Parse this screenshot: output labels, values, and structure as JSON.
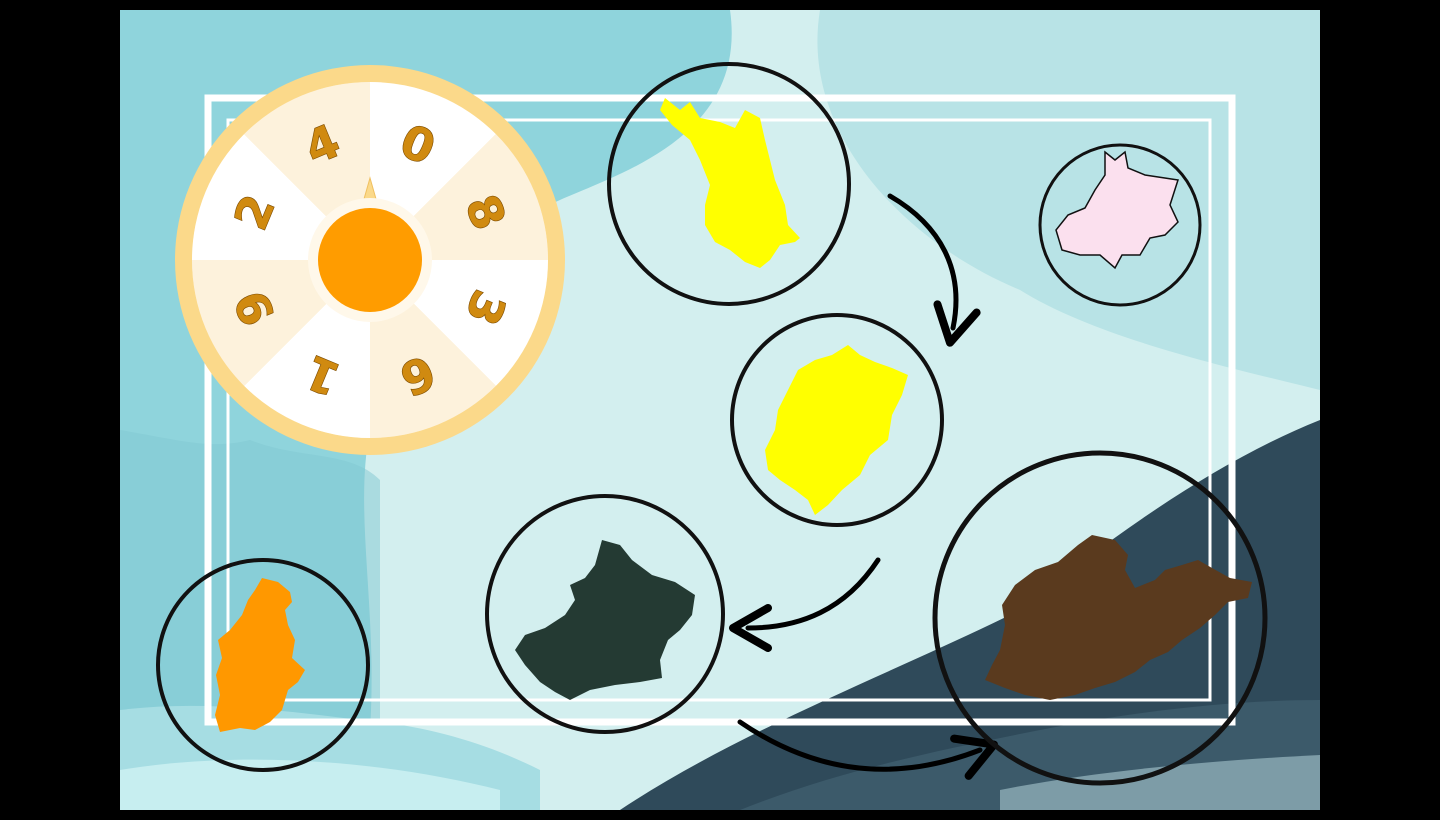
{
  "wheel": {
    "numbers": [
      "0",
      "8",
      "3",
      "6",
      "1",
      "9",
      "2",
      "4"
    ],
    "segment_colors": [
      "#ffffff",
      "#fdf2dc"
    ],
    "rim_color": "#fbd98a",
    "hub_color": "#ff9c00",
    "digit_color": "#d08a10"
  },
  "map_regions": [
    {
      "name": "region-yellow-top",
      "color": "#ffff00"
    },
    {
      "name": "region-pink",
      "color": "#fbe0ee"
    },
    {
      "name": "region-yellow-middle",
      "color": "#ffff00"
    },
    {
      "name": "region-dark-green",
      "color": "#243a33"
    },
    {
      "name": "region-brown",
      "color": "#5a3a1e"
    },
    {
      "name": "region-orange",
      "color": "#ff9800"
    }
  ],
  "colors": {
    "background_light": "#d3efef",
    "background_teal": "#8fd4dc",
    "background_dark": "#2f4a5a",
    "frame": "#ffffff",
    "arrow": "#000000"
  }
}
